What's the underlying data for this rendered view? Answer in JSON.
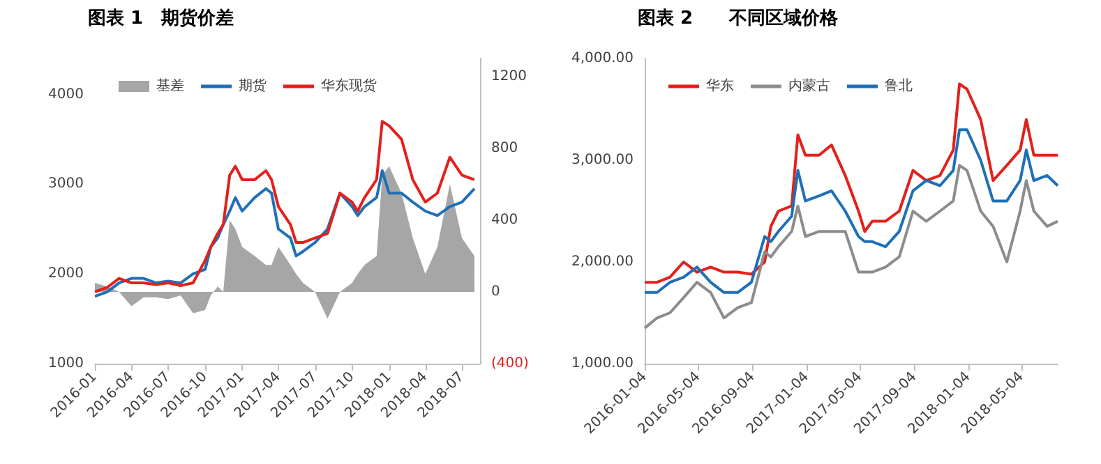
{
  "chart_data": [
    {
      "type": "line",
      "title": "图表 1　期货价差",
      "legend": "top left",
      "marker": "none",
      "line_style": "solid",
      "grid": false,
      "x": [
        "2016-01-01",
        "2016-02-01",
        "2016-03-01",
        "2016-04-01",
        "2016-05-01",
        "2016-06-01",
        "2016-07-01",
        "2016-08-01",
        "2016-09-01",
        "2016-10-01",
        "2016-10-15",
        "2016-11-01",
        "2016-11-15",
        "2016-12-01",
        "2016-12-15",
        "2017-01-01",
        "2017-02-01",
        "2017-03-01",
        "2017-03-15",
        "2017-04-01",
        "2017-05-01",
        "2017-05-15",
        "2017-06-01",
        "2017-07-01",
        "2017-08-01",
        "2017-09-01",
        "2017-10-01",
        "2017-10-15",
        "2017-11-01",
        "2017-12-01",
        "2017-12-15",
        "2018-01-01",
        "2018-02-01",
        "2018-03-01",
        "2018-04-01",
        "2018-05-01",
        "2018-06-01",
        "2018-07-01",
        "2018-08-01"
      ],
      "xlim": [
        "2016-01-01",
        "2018-08-15"
      ],
      "xticks": [
        {
          "value": "2016-01-01",
          "label": "2016-01"
        },
        {
          "value": "2016-04-01",
          "label": "2016-04"
        },
        {
          "value": "2016-07-01",
          "label": "2016-07"
        },
        {
          "value": "2016-10-01",
          "label": "2016-10"
        },
        {
          "value": "2017-01-01",
          "label": "2017-01"
        },
        {
          "value": "2017-04-01",
          "label": "2017-04"
        },
        {
          "value": "2017-07-01",
          "label": "2017-07"
        },
        {
          "value": "2017-10-01",
          "label": "2017-10"
        },
        {
          "value": "2018-01-01",
          "label": "2018-01"
        },
        {
          "value": "2018-04-01",
          "label": "2018-04"
        },
        {
          "value": "2018-07-01",
          "label": "2018-07"
        }
      ],
      "ylim": [
        1000,
        4400
      ],
      "yticks": [
        1000,
        2000,
        3000,
        4000
      ],
      "y2lim": [
        -400,
        1300
      ],
      "y2ticks": [
        {
          "value": -400,
          "label": "(400)"
        },
        0,
        400,
        800,
        1200
      ],
      "series": [
        {
          "name": "基差",
          "type": "area",
          "axis": "y2",
          "color": "#a6a6a6",
          "values": [
            50,
            30,
            0,
            -80,
            -30,
            -30,
            -40,
            -20,
            -120,
            -100,
            -20,
            30,
            0,
            400,
            350,
            250,
            200,
            150,
            150,
            250,
            150,
            100,
            50,
            0,
            -150,
            0,
            50,
            100,
            150,
            200,
            650,
            700,
            550,
            300,
            100,
            250,
            600,
            300,
            200
          ]
        },
        {
          "name": "期货",
          "color": "#1f6fb8",
          "values": [
            1750,
            1800,
            1900,
            1950,
            1950,
            1900,
            1920,
            1900,
            2000,
            2050,
            2300,
            2400,
            2550,
            2700,
            2850,
            2700,
            2850,
            2950,
            2900,
            2500,
            2400,
            2200,
            2250,
            2350,
            2500,
            2900,
            2750,
            2650,
            2750,
            2850,
            3150,
            2900,
            2900,
            2800,
            2700,
            2650,
            2750,
            2800,
            2950
          ]
        },
        {
          "name": "华东现货",
          "color": "#e3201b",
          "values": [
            1800,
            1850,
            1950,
            1900,
            1900,
            1880,
            1900,
            1870,
            1900,
            2150,
            2300,
            2450,
            2550,
            3100,
            3200,
            3050,
            3050,
            3150,
            3050,
            2750,
            2550,
            2350,
            2350,
            2400,
            2450,
            2900,
            2800,
            2700,
            2850,
            3050,
            3700,
            3650,
            3500,
            3050,
            2800,
            2900,
            3300,
            3100,
            3050
          ]
        }
      ]
    },
    {
      "type": "line",
      "title": "图表 2　　不同区域价格",
      "legend": "top left",
      "marker": "none",
      "line_style": "solid",
      "grid": false,
      "x": [
        "2016-01-04",
        "2016-02-01",
        "2016-03-01",
        "2016-04-01",
        "2016-05-01",
        "2016-06-01",
        "2016-07-01",
        "2016-08-01",
        "2016-09-01",
        "2016-10-01",
        "2016-10-15",
        "2016-11-01",
        "2016-12-01",
        "2016-12-15",
        "2017-01-01",
        "2017-02-01",
        "2017-03-01",
        "2017-04-01",
        "2017-05-01",
        "2017-05-15",
        "2017-06-01",
        "2017-07-01",
        "2017-08-01",
        "2017-09-01",
        "2017-10-01",
        "2017-11-01",
        "2017-12-01",
        "2017-12-15",
        "2018-01-01",
        "2018-02-01",
        "2018-03-01",
        "2018-04-01",
        "2018-05-01",
        "2018-05-15",
        "2018-06-01",
        "2018-07-01",
        "2018-07-25"
      ],
      "xlim": [
        "2016-01-04",
        "2018-07-25"
      ],
      "xticks": [
        "2016-01-04",
        "2016-05-04",
        "2016-09-04",
        "2017-01-04",
        "2017-05-04",
        "2017-09-04",
        "2018-01-04",
        "2018-05-04"
      ],
      "ylim": [
        1000,
        4000
      ],
      "yticks": [
        {
          "value": 1000,
          "label": "1,000.00"
        },
        {
          "value": 2000,
          "label": "2,000.00"
        },
        {
          "value": 3000,
          "label": "3,000.00"
        },
        {
          "value": 4000,
          "label": "4,000.00"
        }
      ],
      "series": [
        {
          "name": "华东",
          "color": "#e3201b",
          "values": [
            1800,
            1800,
            1850,
            2000,
            1900,
            1950,
            1900,
            1900,
            1880,
            2000,
            2350,
            2500,
            2550,
            3250,
            3050,
            3050,
            3150,
            2850,
            2500,
            2300,
            2400,
            2400,
            2500,
            2900,
            2800,
            2850,
            3100,
            3750,
            3700,
            3400,
            2800,
            2950,
            3100,
            3400,
            3050,
            3050,
            3050
          ]
        },
        {
          "name": "内蒙古",
          "color": "#8c8c8c",
          "values": [
            1350,
            1450,
            1500,
            1650,
            1800,
            1700,
            1450,
            1550,
            1600,
            2100,
            2050,
            2150,
            2300,
            2550,
            2250,
            2300,
            2300,
            2300,
            1900,
            1900,
            1900,
            1950,
            2050,
            2500,
            2400,
            2500,
            2600,
            2950,
            2900,
            2500,
            2350,
            2000,
            2500,
            2800,
            2500,
            2350,
            2400
          ]
        },
        {
          "name": "鲁北",
          "color": "#1f6fb8",
          "values": [
            1700,
            1700,
            1800,
            1850,
            1950,
            1800,
            1700,
            1700,
            1800,
            2250,
            2200,
            2300,
            2450,
            2900,
            2600,
            2650,
            2700,
            2500,
            2250,
            2200,
            2200,
            2150,
            2300,
            2700,
            2800,
            2750,
            2900,
            3300,
            3300,
            3000,
            2600,
            2600,
            2800,
            3100,
            2800,
            2850,
            2750
          ]
        }
      ]
    }
  ]
}
